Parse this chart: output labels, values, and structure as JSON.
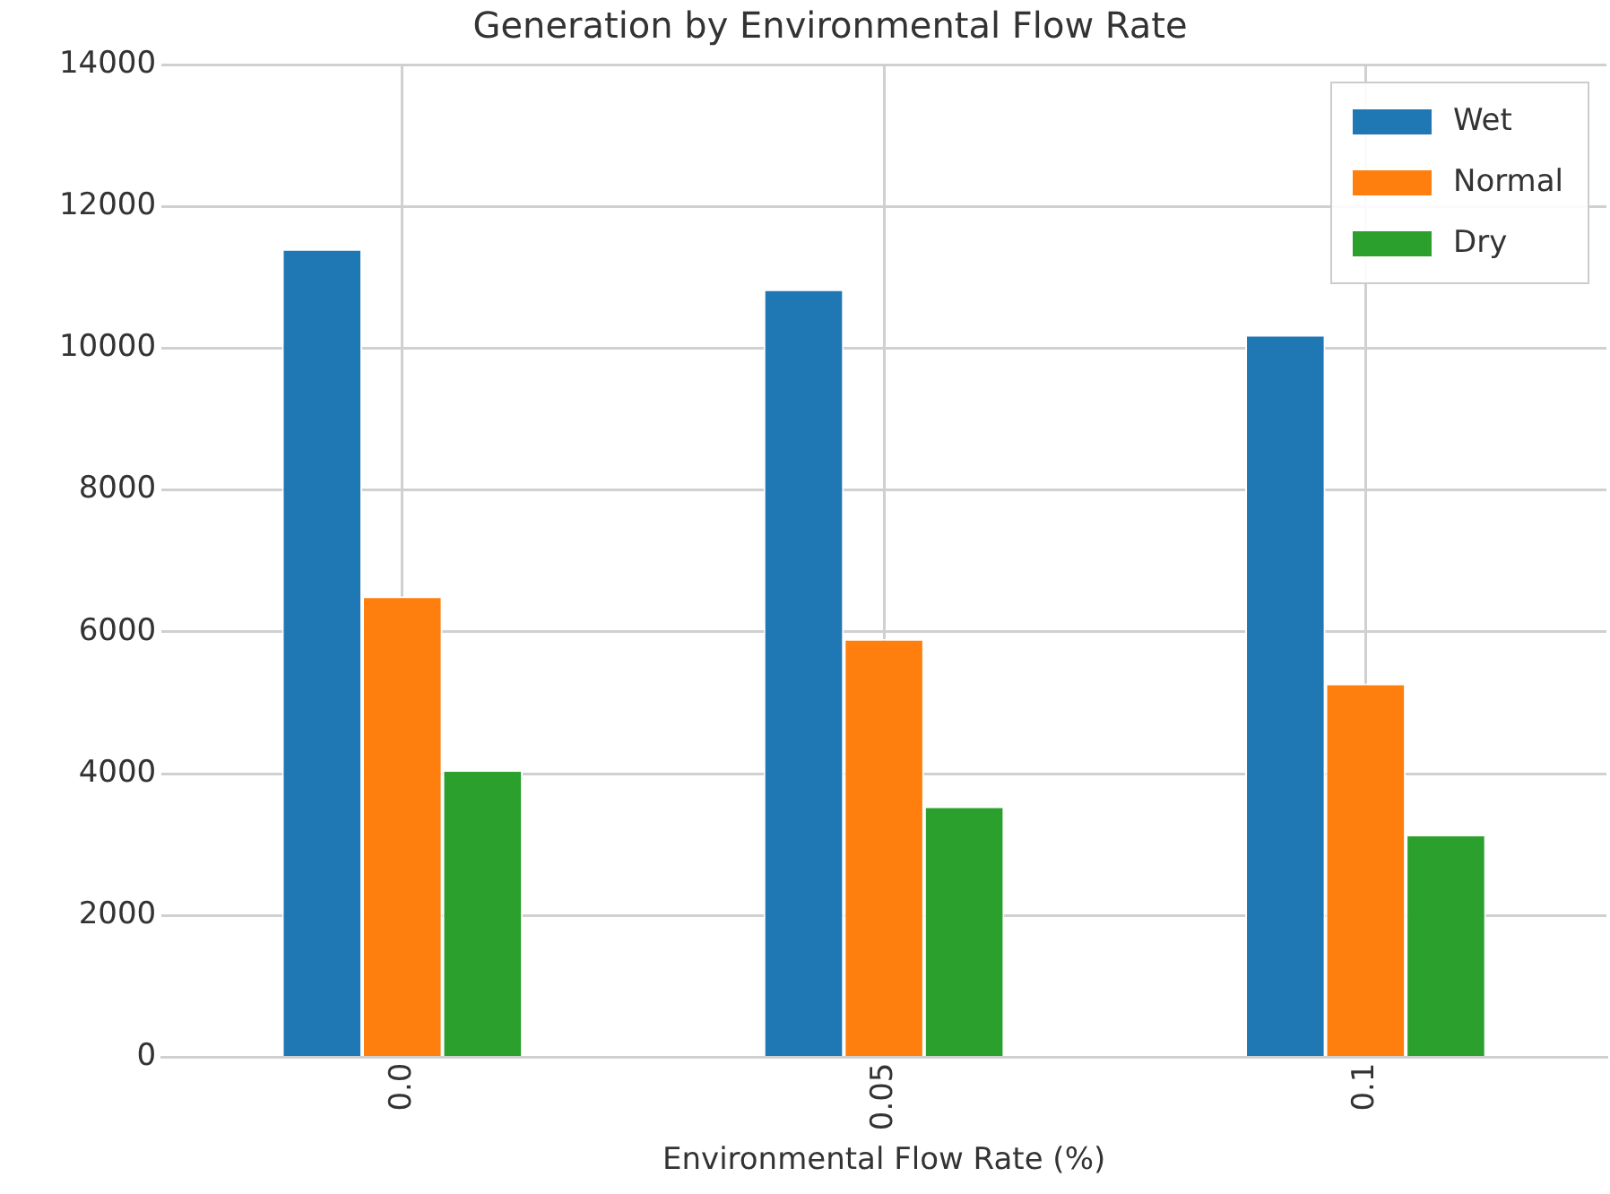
{
  "chart_data": {
    "type": "bar",
    "title": "Generation by Environmental Flow Rate",
    "xlabel": "Environmental Flow Rate (%)",
    "categories": [
      "0.0",
      "0.05",
      "0.1"
    ],
    "series": [
      {
        "name": "Wet",
        "color": "#1f77b4",
        "values": [
          11400,
          10830,
          10190
        ]
      },
      {
        "name": "Normal",
        "color": "#ff7f0e",
        "values": [
          6500,
          5900,
          5270
        ]
      },
      {
        "name": "Dry",
        "color": "#2ca02c",
        "values": [
          4050,
          3540,
          3140
        ]
      }
    ],
    "ylim": [
      0,
      14000
    ],
    "yticks": [
      0,
      2000,
      4000,
      6000,
      8000,
      10000,
      12000,
      14000
    ],
    "grid": true,
    "legend": "top right"
  }
}
